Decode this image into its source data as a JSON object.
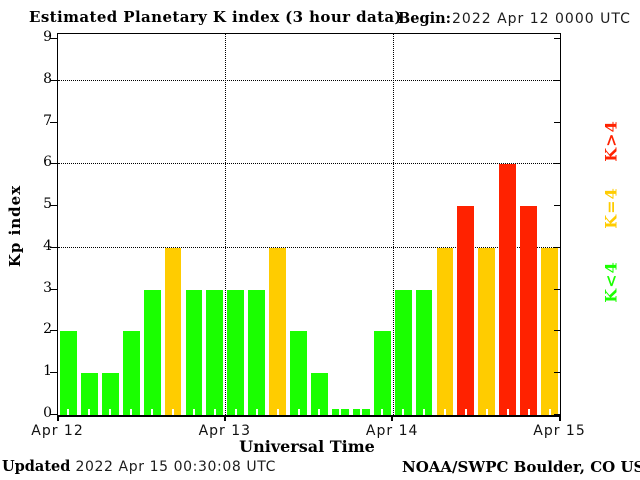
{
  "header": {
    "title": "Estimated Planetary K index (3 hour data)",
    "begin_label": "Begin:",
    "begin_value": "2022 Apr 12 0000 UTC"
  },
  "y_axis": {
    "label": "Kp index",
    "ticks": [
      0,
      1,
      2,
      3,
      4,
      5,
      6,
      7,
      8,
      9
    ]
  },
  "x_axis": {
    "label": "Universal Time",
    "tick_labels": [
      "Apr 12",
      "Apr 13",
      "Apr 14",
      "Apr 15"
    ]
  },
  "legend": {
    "items": [
      {
        "label": "K>4",
        "color": "#ff2200"
      },
      {
        "label": "K=4",
        "color": "#ffcc00"
      },
      {
        "label": "K<4",
        "color": "#1aff00"
      }
    ]
  },
  "footer": {
    "updated_label": "Updated",
    "updated_value": "2022 Apr 15 00:30:08 UTC",
    "source": "NOAA/SWPC Boulder, CO USA"
  },
  "chart_data": {
    "type": "bar",
    "title": "Estimated Planetary K index (3 hour data)",
    "xlabel": "Universal Time",
    "ylabel": "Kp index",
    "ylim": [
      0,
      9
    ],
    "grid": "dotted horizontal at 4, 6, 8; dotted vertical at day boundaries",
    "gridlines_y": [
      4,
      6,
      8
    ],
    "bin_hours": 3,
    "begin": "2022 Apr 12 0000 UTC",
    "series": [
      {
        "name": "Kp",
        "days": [
          {
            "date": "Apr 12",
            "values": [
              2,
              1,
              1,
              2,
              3,
              4,
              3,
              3
            ]
          },
          {
            "date": "Apr 13",
            "values": [
              3,
              3,
              4,
              2,
              1,
              0,
              0,
              2
            ]
          },
          {
            "date": "Apr 14",
            "values": [
              3,
              3,
              4,
              5,
              4,
              6,
              5,
              4
            ]
          }
        ]
      }
    ],
    "color_rules": {
      "below_4": "#1aff00",
      "equal_4": "#ffcc00",
      "above_4": "#ff2200"
    },
    "legend_position": "right, rotated 90deg"
  }
}
